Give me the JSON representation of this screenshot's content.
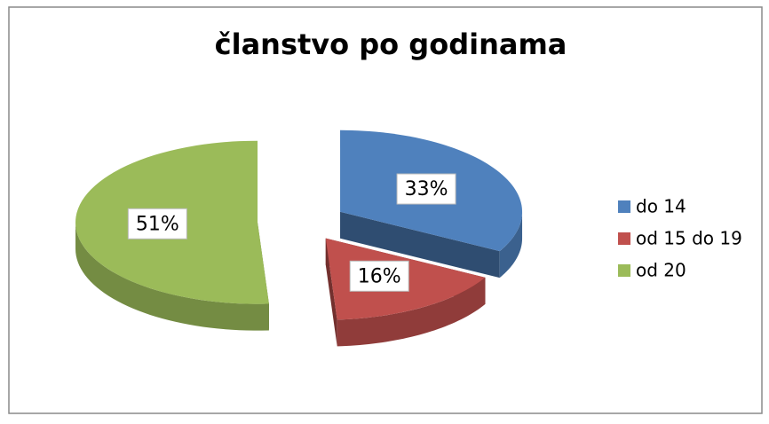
{
  "chart_data": {
    "type": "pie",
    "title": "članstvo po godinama",
    "categories": [
      "do 14",
      "od 15 do 19",
      "od 20"
    ],
    "values": [
      33,
      16,
      51
    ],
    "value_labels": [
      "33%",
      "16%",
      "51%"
    ],
    "colors": [
      "#4f81bd",
      "#c0504d",
      "#9bbb59"
    ],
    "legend": "right"
  }
}
